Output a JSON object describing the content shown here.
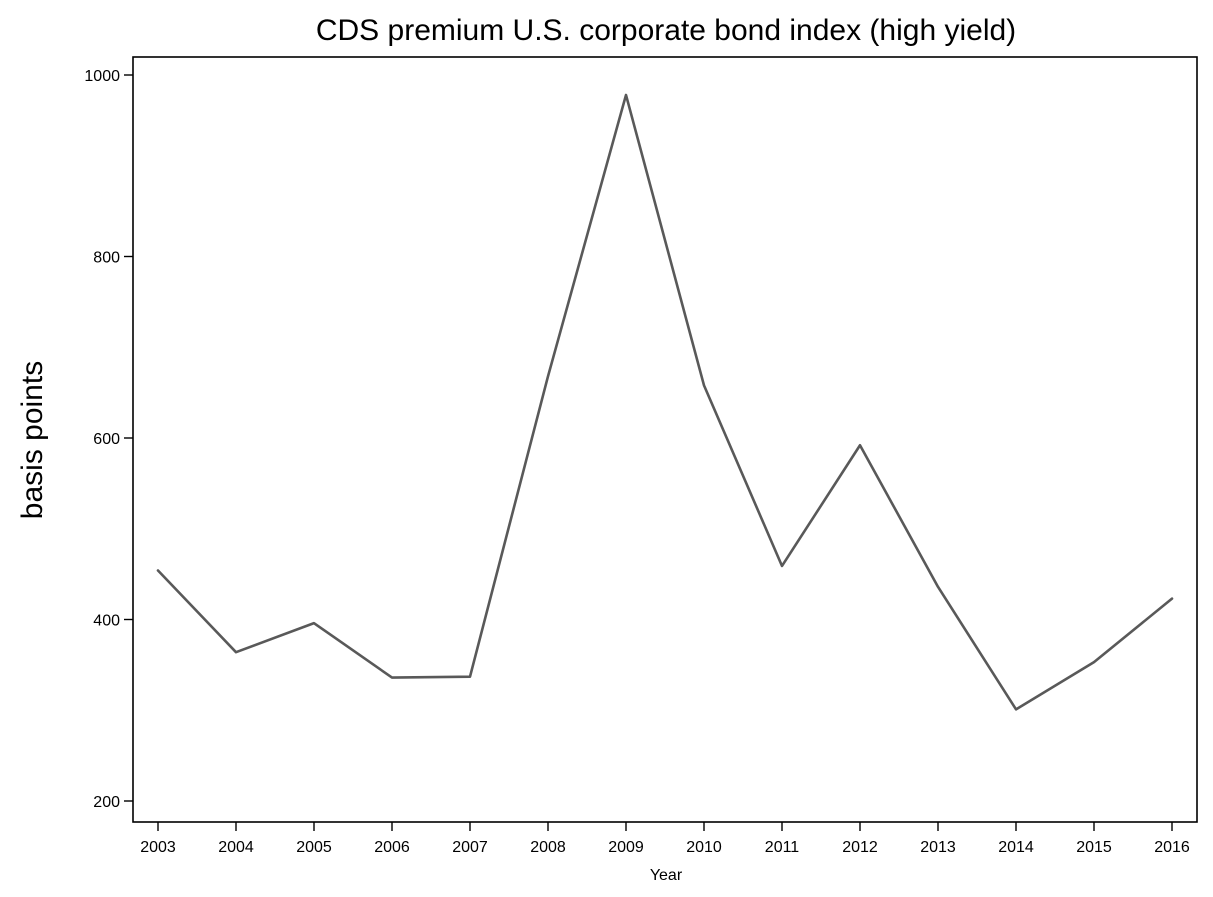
{
  "chart_data": {
    "type": "line",
    "title": "CDS premium U.S. corporate bond index (high yield)",
    "xlabel": "Year",
    "ylabel": "basis points",
    "x": [
      2003,
      2004,
      2005,
      2006,
      2007,
      2008,
      2009,
      2010,
      2011,
      2012,
      2013,
      2014,
      2015,
      2016
    ],
    "series": [
      {
        "values": [
          454,
          364,
          396,
          336,
          337,
          668,
          978,
          658,
          459,
          592,
          436,
          301,
          353,
          423
        ],
        "color": "#595959"
      }
    ],
    "xlim": [
      2003,
      2016
    ],
    "ylim": [
      200,
      1000
    ],
    "yticks": [
      200,
      400,
      600,
      800,
      1000
    ],
    "grid": false,
    "legend": "none"
  }
}
